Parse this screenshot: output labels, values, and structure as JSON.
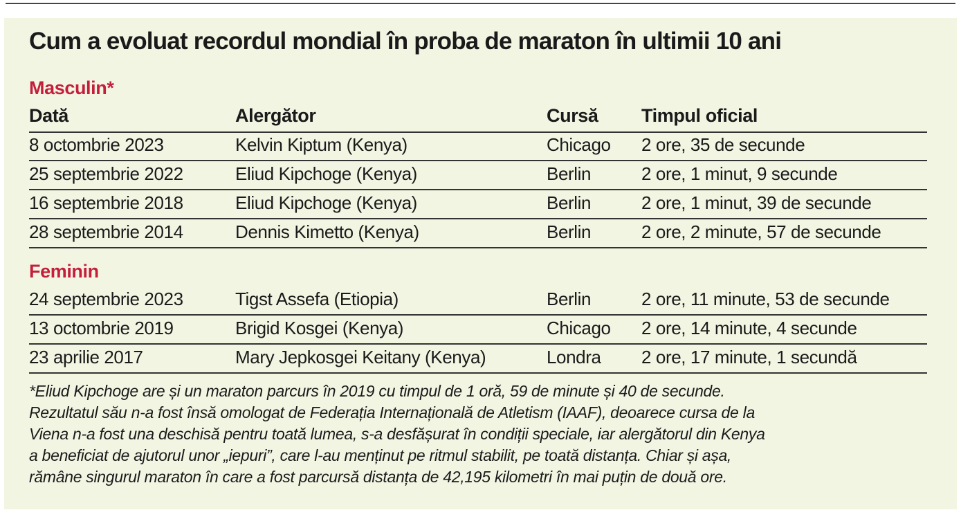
{
  "title": "Cum a evoluat recordul mondial în proba de maraton în ultimii 10 ani",
  "columns": [
    "Dată",
    "Alergător",
    "Cursă",
    "Timpul oficial"
  ],
  "sections": [
    {
      "title": "Masculin*",
      "rows": [
        [
          "8 octombrie 2023",
          "Kelvin Kiptum (Kenya)",
          "Chicago",
          "2 ore, 35 de secunde"
        ],
        [
          "25 septembrie 2022",
          "Eliud Kipchoge (Kenya)",
          "Berlin",
          "2 ore, 1 minut, 9 secunde"
        ],
        [
          "16 septembrie 2018",
          "Eliud Kipchoge (Kenya)",
          "Berlin",
          "2 ore, 1 minut, 39 de secunde"
        ],
        [
          "28 septembrie 2014",
          "Dennis Kimetto (Kenya)",
          "Berlin",
          "2 ore, 2 minute, 57 de secunde"
        ]
      ]
    },
    {
      "title": "Feminin",
      "rows": [
        [
          "24 septembrie 2023",
          "Tigst Assefa (Etiopia)",
          "Berlin",
          "2 ore, 11 minute, 53 de secunde"
        ],
        [
          "13 octombrie 2019",
          "Brigid Kosgei (Kenya)",
          "Chicago",
          "2 ore, 14 minute, 4 secunde"
        ],
        [
          "23 aprilie 2017",
          "Mary Jepkosgei Keitany (Kenya)",
          "Londra",
          "2 ore, 17 minute, 1 secundă"
        ]
      ]
    }
  ],
  "footnote": [
    "*Eliud Kipchoge are și un maraton parcurs în 2019 cu timpul de 1 oră, 59 de minute și 40 de secunde.",
    "Rezultatul său n-a fost însă omologat de Federația Internațională de Atletism (IAAF), deoarece cursa de la",
    "Viena n-a fost una deschisă pentru toată lumea, s-a desfășurat în condiții speciale, iar alergătorul din Kenya",
    "a beneficiat de ajutorul unor „iepuri”, care l-au menținut pe ritmul stabilit, pe toată distanța. Chiar și așa,",
    "rămâne singurul maraton în care a fost parcursă distanța de 42,195 kilometri în mai puțin de două ore."
  ]
}
